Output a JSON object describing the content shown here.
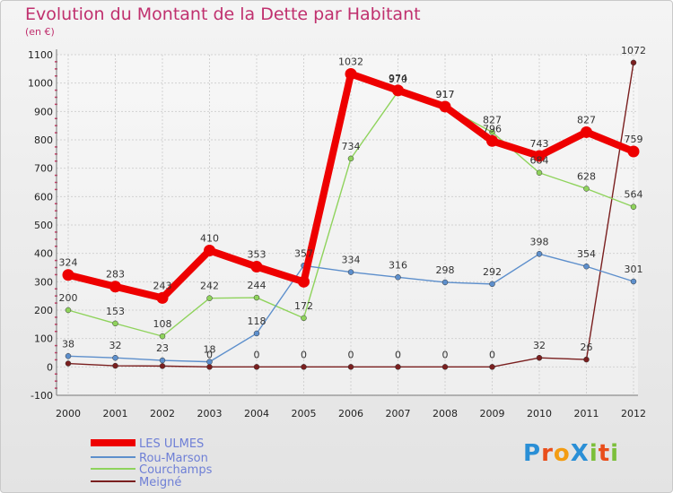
{
  "chart_data": {
    "type": "line",
    "title": "Evolution du Montant de la Dette par Habitant",
    "subtitle": "(en €)",
    "categories": [
      "2000",
      "2001",
      "2002",
      "2003",
      "2004",
      "2005",
      "2006",
      "2007",
      "2008",
      "2009",
      "2010",
      "2011",
      "2012"
    ],
    "yticks": [
      -100,
      0,
      100,
      200,
      300,
      400,
      500,
      600,
      700,
      800,
      900,
      1000,
      1100
    ],
    "ylim": [
      -100,
      1100
    ],
    "series": [
      {
        "name": "Meigné",
        "color": "#7a1f1f",
        "values": [
          12,
          4,
          3,
          0,
          0,
          0,
          0,
          0,
          0,
          0,
          32,
          26,
          1072
        ],
        "labels": [
          "",
          "",
          "",
          "0",
          "0",
          "0",
          "0",
          "0",
          "0",
          "0",
          "32",
          "26",
          "1072"
        ]
      },
      {
        "name": "Courchamps",
        "color": "#8fd35c",
        "values": [
          200,
          153,
          108,
          242,
          244,
          172,
          734,
          970,
          917,
          827,
          684,
          628,
          564
        ],
        "labels": [
          "200",
          "153",
          "108",
          "242",
          "244",
          "172",
          "734",
          "970",
          "917",
          "827",
          "684",
          "628",
          "564"
        ]
      },
      {
        "name": "Rou-Marson",
        "color": "#5d8fcc",
        "values": [
          38,
          32,
          23,
          18,
          118,
          357,
          334,
          316,
          298,
          292,
          398,
          354,
          301
        ],
        "labels": [
          "38",
          "32",
          "23",
          "18",
          "118",
          "357",
          "334",
          "316",
          "298",
          "292",
          "398",
          "354",
          "301"
        ]
      },
      {
        "name": "LES ULMES",
        "color": "#ee0000",
        "values": [
          324,
          283,
          243,
          410,
          353,
          300,
          1032,
          974,
          917,
          796,
          743,
          827,
          759
        ],
        "labels": [
          "324",
          "283",
          "243",
          "410",
          "353",
          "",
          "1032",
          "974",
          "917",
          "796",
          "743",
          "827",
          "759"
        ]
      }
    ],
    "legend": [
      "LES ULMES",
      "Rou-Marson",
      "Courchamps",
      "Meigné"
    ]
  },
  "logo_text": "ProXiti"
}
